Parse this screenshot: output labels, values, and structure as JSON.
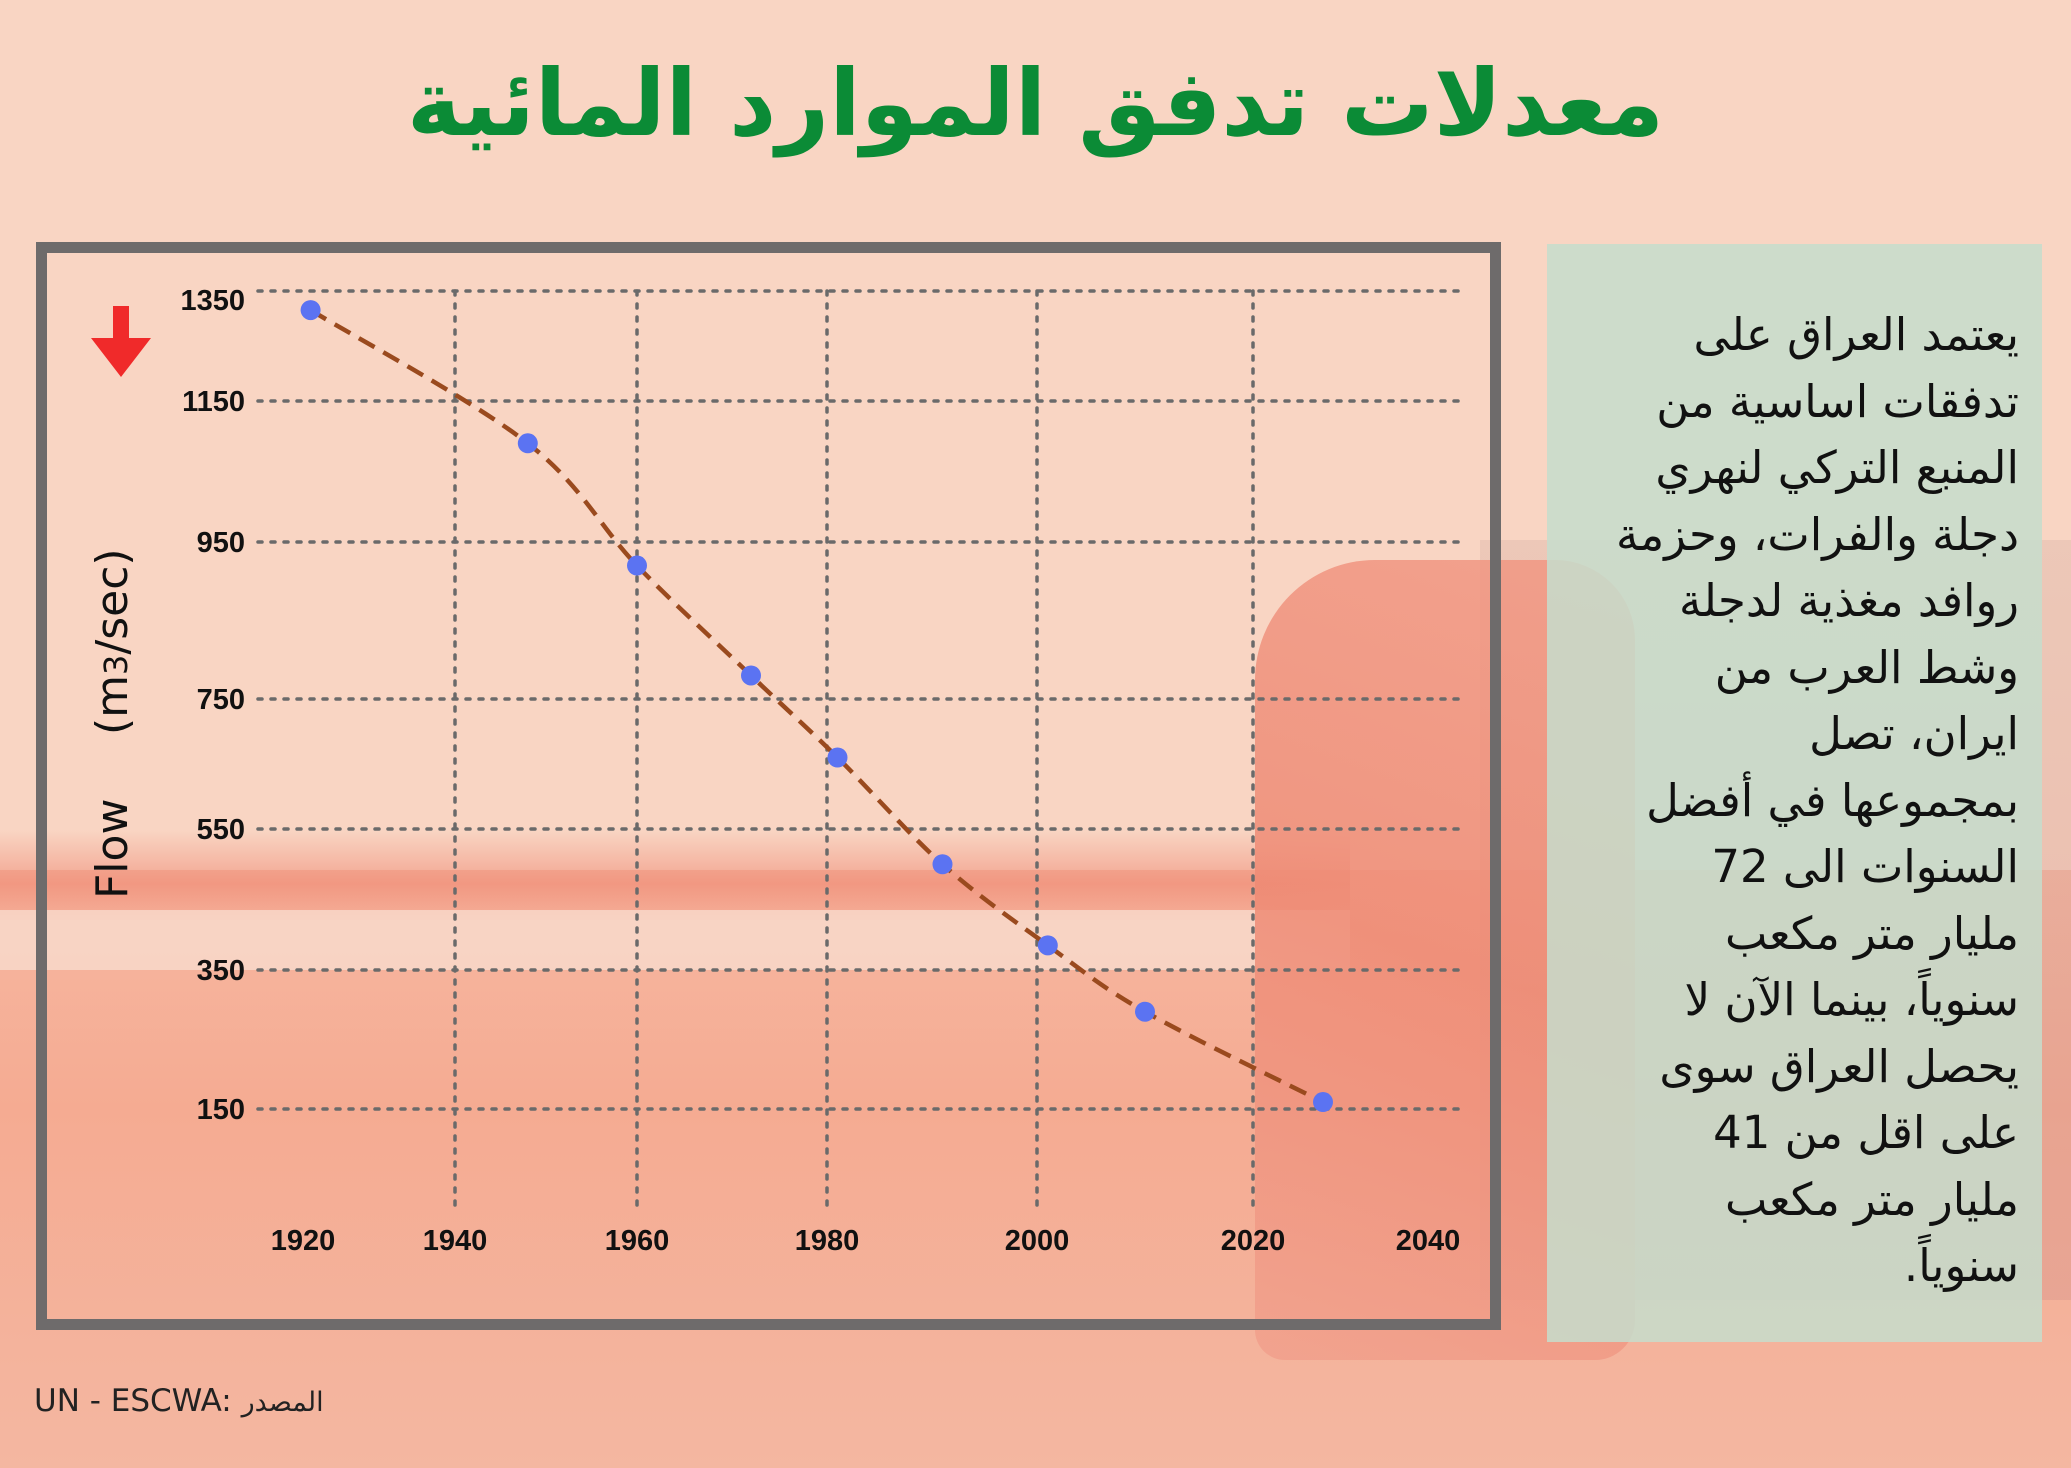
{
  "title": "معدلات تدفق الموارد المائية",
  "side_text": "يعتمد العراق على\nتدفقات اساسية  من\nالمنبع التركي لنهري\nدجلة والفرات، وحزمة\nروافد مغذية لدجلة\nوشط العرب من\nايران، تصل\nبمجموعها في أفضل\nالسنوات الى 72\nمليار متر مكعب\nسنوياً، بينما الآن لا\nيحصل العراق سوى\nعلى اقل من 41\nمليار متر  مكعب\nسنوياً.",
  "source": {
    "value": "UN - ESCWA:",
    "label": "المصدر"
  },
  "icons": {
    "trend": "down-arrow-icon"
  },
  "colors": {
    "title": "#0b8b36",
    "line": "#9a4a1e",
    "points": "#5b73f2",
    "arrow": "#f02a2a"
  },
  "chart_data": {
    "type": "line",
    "ylabel_flow": "Flow",
    "ylabel_unit_pre": "(m",
    "ylabel_unit_sub": "3",
    "ylabel_unit_post": "/sec)",
    "x_ticks": [
      "1920",
      "1940",
      "1960",
      "1980",
      "2000",
      "2020",
      "2040"
    ],
    "y_ticks": [
      "1350",
      "1150",
      "950",
      "750",
      "550",
      "350",
      "150"
    ],
    "grid": true,
    "legend": "none",
    "series": [
      {
        "x": [
          1921,
          1948,
          1960,
          1972,
          1981,
          1991,
          2001,
          2010,
          2028
        ],
        "y": [
          1330,
          1090,
          920,
          780,
          660,
          500,
          385,
          290,
          160
        ]
      }
    ]
  }
}
